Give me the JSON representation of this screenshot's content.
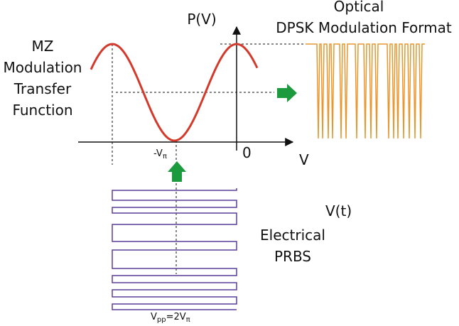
{
  "labels": {
    "power_axis": "P(V)",
    "optical_title": [
      "Optical",
      "DPSK Modulation Format"
    ],
    "mz_title": [
      "MZ",
      "Modulation",
      "Transfer",
      "Function"
    ],
    "neg_vpi": {
      "base": "-V",
      "sub": "π"
    },
    "zero": "0",
    "voltage_axis": "V",
    "vt": "V(t)",
    "prbs_title": [
      "Electrical",
      "PRBS"
    ],
    "vpp": {
      "base": "V",
      "sub": "pp",
      "mid": "=2V",
      "sub2": "π"
    }
  }
}
